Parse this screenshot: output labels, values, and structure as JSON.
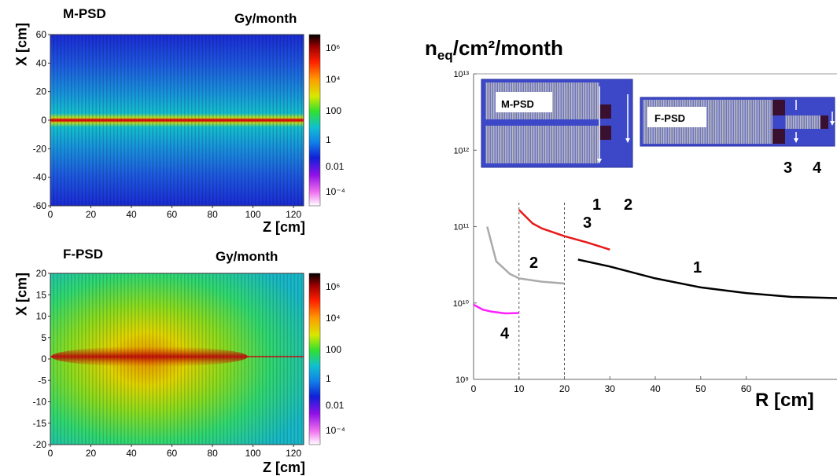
{
  "colorbar_ticks_mpsd": [
    "10⁶",
    "10⁴",
    "100",
    "1",
    "0.01",
    "10⁻⁴"
  ],
  "colorbar_ticks_fpsd": [
    "10⁶",
    "10⁴",
    "100",
    "1",
    "0.01",
    "10⁻⁴"
  ],
  "chart_data": [
    {
      "type": "heatmap",
      "title": "M-PSD",
      "unit_label": "Gy/month",
      "xlabel": "Z [cm]",
      "ylabel": "X [cm]",
      "xlim": [
        0,
        125
      ],
      "ylim": [
        -60,
        60
      ],
      "x_ticks": [
        0,
        20,
        40,
        60,
        80,
        100,
        120
      ],
      "y_ticks": [
        60,
        40,
        20,
        0,
        -20,
        -40,
        -60
      ],
      "color_scale": "log",
      "color_range": [
        0.0001,
        1000000
      ],
      "peak_row": 0,
      "colors": {
        "background": "#1c30d8",
        "mid": "#14b4d8",
        "hot": "#e81818"
      }
    },
    {
      "type": "heatmap",
      "title": "F-PSD",
      "unit_label": "Gy/month",
      "xlabel": "Z [cm]",
      "ylabel": "X [cm]",
      "xlim": [
        0,
        125
      ],
      "ylim": [
        -20,
        20
      ],
      "x_ticks": [
        0,
        20,
        40,
        60,
        80,
        100,
        120
      ],
      "y_ticks": [
        20,
        15,
        10,
        5,
        0,
        -5,
        -10,
        -15,
        -20
      ],
      "color_scale": "log",
      "color_range": [
        0.0001,
        1000000
      ],
      "peak_row": 0,
      "colors": {
        "background": "#14b4c8",
        "mid": "#78dc28",
        "hot": "#c81818"
      }
    },
    {
      "type": "line",
      "title": "n_eq/cm²/month",
      "title_main": "n",
      "title_sub": "eq",
      "title_rest": "/cm²/month",
      "xlabel": "R [cm]",
      "x_ticks": [
        0,
        10,
        20,
        30,
        40,
        50,
        60
      ],
      "xlim": [
        0,
        80
      ],
      "y_scale": "log",
      "y_ticks": [
        "10⁹",
        "10¹⁰",
        "10¹¹",
        "10¹²",
        "10¹³"
      ],
      "y_tick_values": [
        1000000000,
        10000000000,
        100000000000,
        1000000000000,
        10000000000000
      ],
      "ylim": [
        1000000000,
        10000000000000
      ],
      "vertical_lines": [
        10,
        20
      ],
      "series": [
        {
          "name": "1",
          "color": "#000000",
          "points": [
            [
              23,
              37000000000
            ],
            [
              30,
              30000000000
            ],
            [
              40,
              21000000000
            ],
            [
              50,
              16000000000
            ],
            [
              60,
              13500000000
            ],
            [
              70,
              12000000000
            ],
            [
              80,
              11600000000
            ]
          ]
        },
        {
          "name": "2",
          "color": "#aaaaaa",
          "points": [
            [
              3,
              100000000000
            ],
            [
              5,
              35000000000
            ],
            [
              8,
              24000000000
            ],
            [
              10,
              21000000000
            ],
            [
              15,
              19000000000
            ],
            [
              20,
              18000000000
            ]
          ]
        },
        {
          "name": "3",
          "color": "#e81818",
          "points": [
            [
              10,
              165000000000
            ],
            [
              13,
              110000000000
            ],
            [
              15,
              95000000000
            ],
            [
              20,
              75000000000
            ],
            [
              25,
              62000000000
            ],
            [
              30,
              50000000000
            ]
          ]
        },
        {
          "name": "4",
          "color": "#ff20ff",
          "points": [
            [
              0,
              9500000000
            ],
            [
              2,
              8200000000
            ],
            [
              4,
              7700000000
            ],
            [
              7,
              7300000000
            ],
            [
              10,
              7400000000
            ]
          ]
        }
      ],
      "inset_labels": {
        "m_psd": "M-PSD",
        "f_psd": "F-PSD"
      }
    }
  ]
}
